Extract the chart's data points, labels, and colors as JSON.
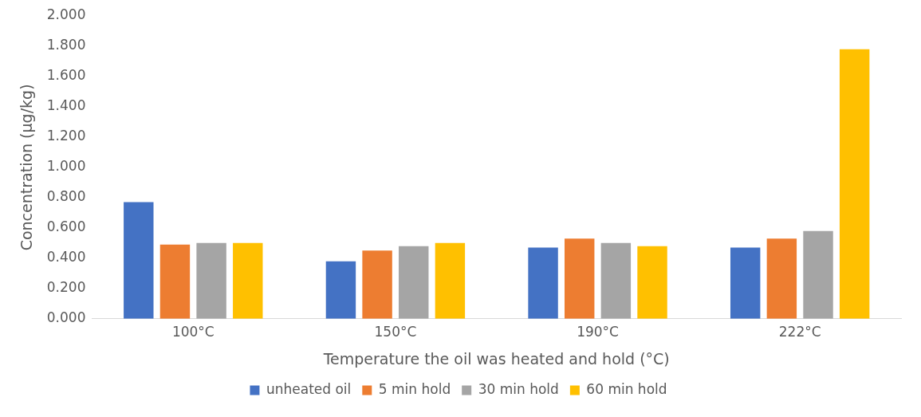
{
  "chart_data": {
    "type": "bar",
    "xlabel": "Temperature the oil was heated and hold (°C)",
    "ylabel": "Concentration (µg/kg)",
    "categories": [
      "100°C",
      "150°C",
      "190°C",
      "222°C"
    ],
    "series": [
      {
        "name": "unheated oil",
        "color": "#4472c4",
        "values": [
          0.77,
          0.38,
          0.47,
          0.47
        ]
      },
      {
        "name": "5 min hold",
        "color": "#ed7d31",
        "values": [
          0.49,
          0.45,
          0.53,
          0.53
        ]
      },
      {
        "name": "30 min hold",
        "color": "#a5a5a5",
        "values": [
          0.5,
          0.48,
          0.5,
          0.58
        ]
      },
      {
        "name": "60 min hold",
        "color": "#ffc000",
        "values": [
          0.5,
          0.5,
          0.48,
          1.78
        ]
      }
    ],
    "ylim": [
      0,
      2
    ],
    "yticks": [
      {
        "value": 0,
        "label": "0.000"
      },
      {
        "value": 0.2,
        "label": "0.200"
      },
      {
        "value": 0.4,
        "label": "0.400"
      },
      {
        "value": 0.6,
        "label": "0.600"
      },
      {
        "value": 0.8,
        "label": "0.800"
      },
      {
        "value": 1,
        "label": "1.000"
      },
      {
        "value": 1.2,
        "label": "1.200"
      },
      {
        "value": 1.4,
        "label": "1.400"
      },
      {
        "value": 1.6,
        "label": "1.600"
      },
      {
        "value": 1.8,
        "label": "1.800"
      },
      {
        "value": 2,
        "label": "2.000"
      }
    ],
    "grid": false,
    "legend": "bottom"
  }
}
